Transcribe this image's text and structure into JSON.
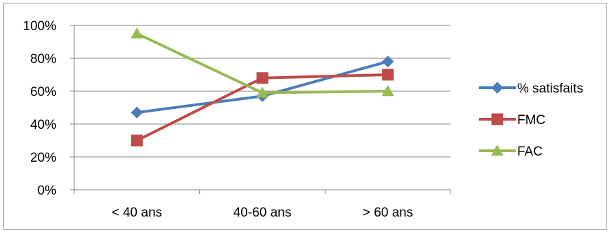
{
  "chart_data": {
    "type": "line",
    "categories": [
      "< 40 ans",
      "40-60 ans",
      "> 60 ans"
    ],
    "series": [
      {
        "name": "% satisfaits",
        "values": [
          47,
          57,
          78
        ],
        "color": "#4a7ebb",
        "marker": "diamond"
      },
      {
        "name": "FMC",
        "values": [
          30,
          68,
          70
        ],
        "color": "#be4b48",
        "marker": "square"
      },
      {
        "name": "FAC",
        "values": [
          95,
          59,
          60
        ],
        "color": "#98b954",
        "marker": "triangle"
      }
    ],
    "ylim": [
      0,
      100
    ],
    "yticks": [
      "0%",
      "20%",
      "40%",
      "60%",
      "80%",
      "100%"
    ],
    "grid": true,
    "legend_position": "right"
  }
}
